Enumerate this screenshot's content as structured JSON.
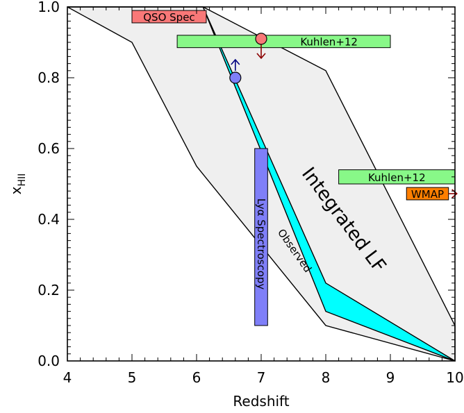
{
  "chart_data": {
    "type": "area",
    "xlabel": "Redshift",
    "ylabel": "x",
    "ylabel_sub": "HII",
    "xlim": [
      4,
      10
    ],
    "ylim": [
      0.0,
      1.0
    ],
    "xticks": [
      "4",
      "5",
      "6",
      "7",
      "8",
      "9",
      "10"
    ],
    "yticks": [
      "0.0",
      "0.2",
      "0.4",
      "0.6",
      "0.8",
      "1.0"
    ],
    "regions": [
      {
        "name": "Integrated LF",
        "fill": "#efefef",
        "upper": {
          "x": [
            4,
            6.1,
            8,
            10
          ],
          "y": [
            1.0,
            1.0,
            0.82,
            0.1
          ]
        },
        "lower": {
          "x": [
            4,
            5,
            6,
            8,
            10
          ],
          "y": [
            1.0,
            0.9,
            0.55,
            0.1,
            0.0
          ]
        }
      },
      {
        "name": "Observed",
        "fill": "#00ffff",
        "upper": {
          "x": [
            6.1,
            8,
            10
          ],
          "y": [
            1.0,
            0.22,
            0.0
          ]
        },
        "lower": {
          "x": [
            6.1,
            8,
            10
          ],
          "y": [
            1.0,
            0.14,
            0.0
          ]
        }
      }
    ],
    "constraints": [
      {
        "label": "QSO Spec",
        "kind": "box",
        "x": [
          5.0,
          6.15
        ],
        "y": [
          0.955,
          0.99
        ],
        "fill": "#f87878"
      },
      {
        "label": "Kuhlen+12",
        "kind": "box",
        "x": [
          5.7,
          9.0
        ],
        "y": [
          0.885,
          0.92
        ],
        "fill": "#88f888"
      },
      {
        "label": "Kuhlen+12",
        "kind": "box",
        "x": [
          8.2,
          10.0
        ],
        "y": [
          0.5,
          0.54
        ],
        "fill": "#88f888"
      },
      {
        "label": "WMAP",
        "kind": "box_arrow_right",
        "x": [
          9.25,
          9.9
        ],
        "y": [
          0.455,
          0.49
        ],
        "fill": "#ff7f00",
        "arrow_color": "#8b0000"
      },
      {
        "label": "Lyα Spectroscopy",
        "kind": "vertical_box",
        "x": [
          6.9,
          7.1
        ],
        "y": [
          0.1,
          0.6
        ],
        "fill": "#7f7ff8"
      },
      {
        "label": "",
        "kind": "point_lower_limit",
        "x": 6.6,
        "y": 0.8,
        "fill": "#7f7ff8",
        "arrow_color": "#000080"
      },
      {
        "label": "",
        "kind": "point_upper_limit",
        "x": 7.0,
        "y": 0.91,
        "fill": "#f87878",
        "arrow_color": "#8b0000"
      }
    ]
  }
}
